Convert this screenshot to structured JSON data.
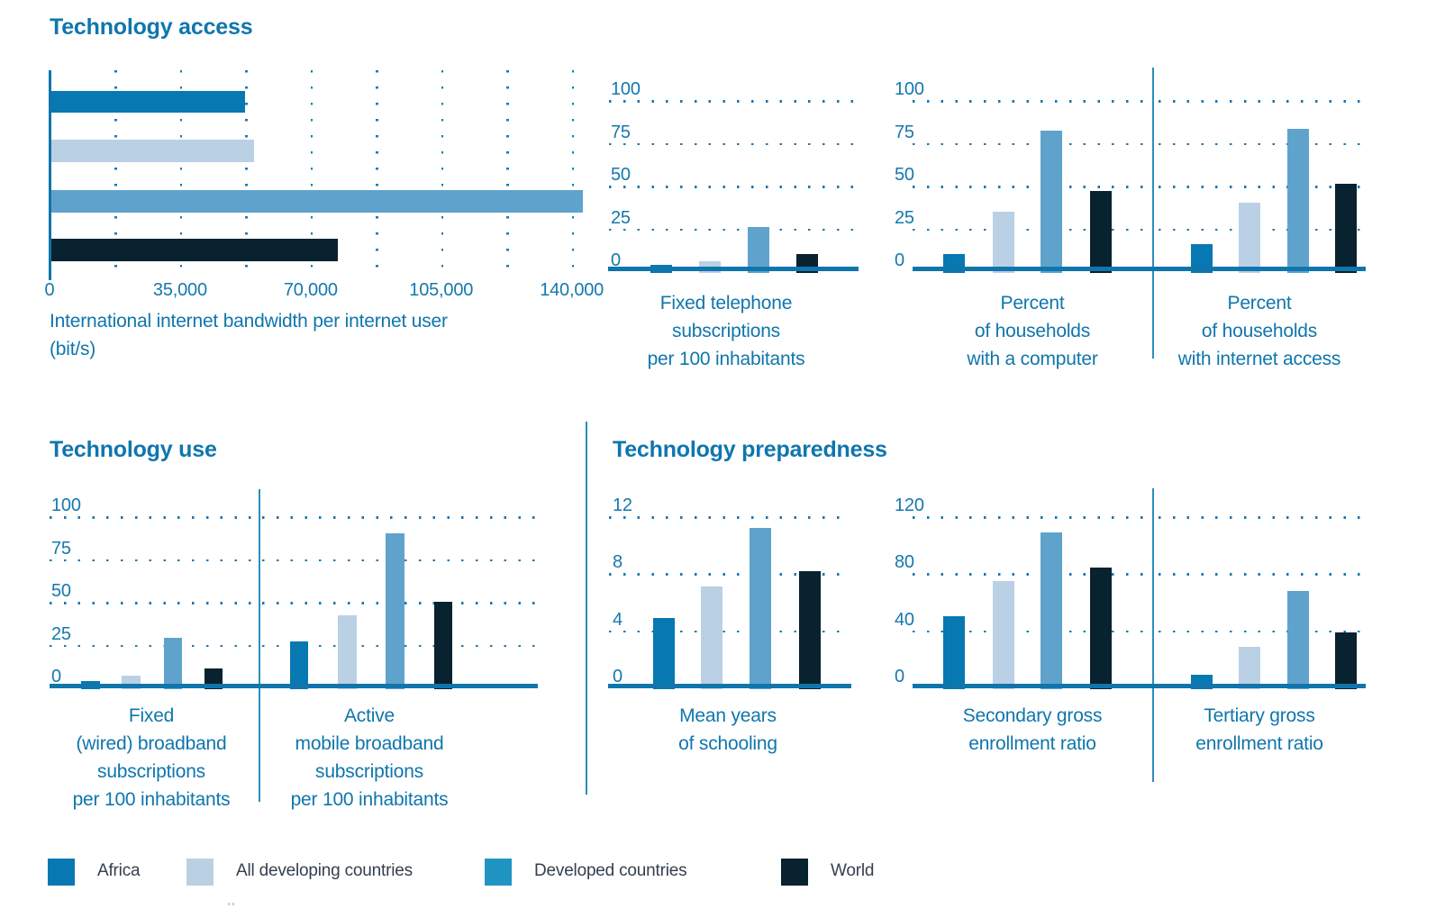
{
  "page": {
    "sections": {
      "access": {
        "title": "Technology access"
      },
      "use": {
        "title": "Technology use"
      },
      "preparedness": {
        "title": "Technology preparedness"
      }
    }
  },
  "palette": {
    "africa": "#0778b1",
    "developing": "#bad0e5",
    "developed": "#5fa3cd",
    "developed_legend": "#2095c4",
    "world": "#08222f",
    "axis_line": "#1075ac",
    "divider_line": "#2e8cbe",
    "grid_dots": "#1b79b0",
    "text_blue": "#0f76ad",
    "legend_text": "#32404e"
  },
  "legend": {
    "items": [
      {
        "label": "Africa"
      },
      {
        "label": "All developing countries"
      },
      {
        "label": "Developed countries"
      },
      {
        "label": "World"
      }
    ]
  },
  "series_names": [
    "Africa",
    "All developing countries",
    "Developed countries",
    "World"
  ],
  "chart_data": [
    {
      "id": "bandwidth",
      "type": "bar",
      "orientation": "horizontal",
      "section": "Technology access",
      "title": "International internet bandwidth per internet user (bit/s)",
      "caption_lines": [
        "International internet bandwidth per internet user",
        "(bit/s)"
      ],
      "categories": [
        "Africa",
        "All developing countries",
        "Developed countries",
        "World"
      ],
      "values": [
        52000,
        54500,
        144500,
        77000
      ],
      "xlabel": "bit/s",
      "xlim": [
        0,
        142500
      ],
      "grid_step": 17500,
      "grid": "dotted",
      "xticks": [
        {
          "v": 0,
          "label": "0"
        },
        {
          "v": 35000,
          "label": "35,000"
        },
        {
          "v": 70000,
          "label": "70,000"
        },
        {
          "v": 105000,
          "label": "105,000"
        },
        {
          "v": 140000,
          "label": "140,000"
        }
      ]
    },
    {
      "id": "fixed_telephone",
      "type": "bar",
      "orientation": "vertical",
      "section": "Technology access",
      "title": "Fixed telephone subscriptions per 100 inhabitants",
      "caption_lines": [
        "Fixed telephone",
        "subscriptions",
        "per 100 inhabitants"
      ],
      "categories": [
        "Africa",
        "All developing countries",
        "Developed countries",
        "World"
      ],
      "values": [
        1,
        7,
        27,
        11
      ],
      "ylim": [
        0,
        100
      ],
      "yticks": [
        0,
        25,
        50,
        75,
        100
      ],
      "grid": "dotted"
    },
    {
      "id": "households_computer",
      "type": "bar",
      "orientation": "vertical",
      "section": "Technology access",
      "title": "Percent of households with a computer",
      "caption_lines": [
        "Percent",
        "of households",
        "with a computer"
      ],
      "categories": [
        "Africa",
        "All developing countries",
        "Developed countries",
        "World"
      ],
      "values": [
        11,
        36,
        83,
        48
      ],
      "ylim": [
        0,
        100
      ],
      "yticks": [
        0,
        25,
        50,
        75,
        100
      ],
      "grid": "dotted"
    },
    {
      "id": "households_internet",
      "type": "bar",
      "orientation": "vertical",
      "section": "Technology access",
      "title": "Percent of households with internet access",
      "caption_lines": [
        "Percent",
        "of households",
        "with internet access"
      ],
      "categories": [
        "Africa",
        "All developing countries",
        "Developed countries",
        "World"
      ],
      "values": [
        17,
        41,
        84,
        52
      ],
      "ylim": [
        0,
        100
      ],
      "yticks": [
        0,
        25,
        50,
        75,
        100
      ],
      "grid": "dotted"
    },
    {
      "id": "fixed_broadband",
      "type": "bar",
      "orientation": "vertical",
      "section": "Technology use",
      "title": "Fixed (wired) broadband subscriptions per 100 inhabitants",
      "caption_lines": [
        "Fixed",
        "(wired) broadband",
        "subscriptions",
        "per 100 inhabitants"
      ],
      "categories": [
        "Africa",
        "All developing countries",
        "Developed countries",
        "World"
      ],
      "values": [
        1,
        8,
        30,
        12
      ],
      "ylim": [
        0,
        100
      ],
      "yticks": [
        0,
        25,
        50,
        75,
        100
      ],
      "grid": "dotted"
    },
    {
      "id": "mobile_broadband",
      "type": "bar",
      "orientation": "vertical",
      "section": "Technology use",
      "title": "Active mobile broadband subscriptions per 100 inhabitants",
      "caption_lines": [
        "Active",
        "mobile broadband",
        "subscriptions",
        "per 100 inhabitants"
      ],
      "categories": [
        "Africa",
        "All developing countries",
        "Developed countries",
        "World"
      ],
      "values": [
        28,
        43,
        91,
        51
      ],
      "ylim": [
        0,
        100
      ],
      "yticks": [
        0,
        25,
        50,
        75,
        100
      ],
      "grid": "dotted"
    },
    {
      "id": "mean_years_schooling",
      "type": "bar",
      "orientation": "vertical",
      "section": "Technology preparedness",
      "title": "Mean years of schooling",
      "caption_lines": [
        "Mean years",
        "of schooling"
      ],
      "categories": [
        "Africa",
        "All developing countries",
        "Developed countries",
        "World"
      ],
      "values": [
        5,
        7.2,
        11.3,
        8.3
      ],
      "ylim": [
        0,
        12
      ],
      "yticks": [
        0,
        4,
        8,
        12
      ],
      "grid": "dotted"
    },
    {
      "id": "secondary_ger",
      "type": "bar",
      "orientation": "vertical",
      "section": "Technology preparedness",
      "title": "Secondary gross enrollment ratio",
      "caption_lines": [
        "Secondary gross",
        "enrollment ratio"
      ],
      "categories": [
        "Africa",
        "All developing countries",
        "Developed countries",
        "World"
      ],
      "values": [
        51,
        76,
        110,
        85
      ],
      "ylim": [
        0,
        120
      ],
      "yticks": [
        0,
        40,
        80,
        120
      ],
      "grid": "dotted"
    },
    {
      "id": "tertiary_ger",
      "type": "bar",
      "orientation": "vertical",
      "section": "Technology preparedness",
      "title": "Tertiary gross enrollment ratio",
      "caption_lines": [
        "Tertiary gross",
        "enrollment ratio"
      ],
      "categories": [
        "Africa",
        "All developing countries",
        "Developed countries",
        "World"
      ],
      "values": [
        10,
        30,
        69,
        40
      ],
      "ylim": [
        0,
        120
      ],
      "yticks": [
        0,
        40,
        80,
        120
      ],
      "grid": "dotted"
    }
  ]
}
